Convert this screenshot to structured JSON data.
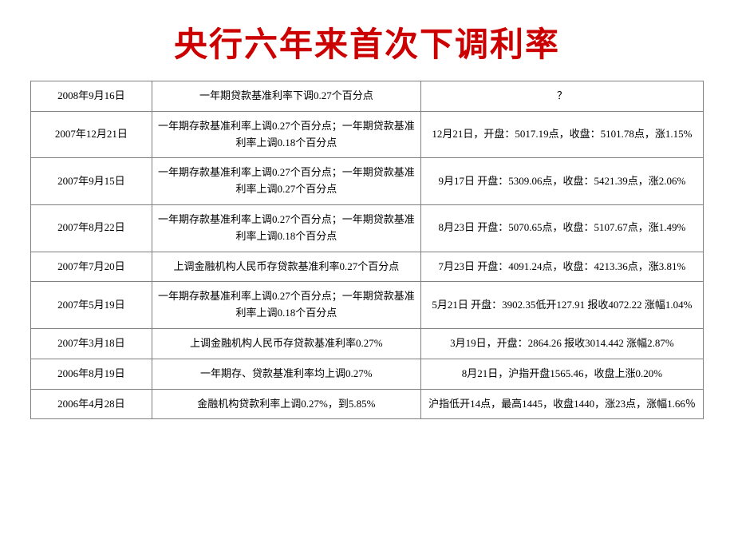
{
  "title": "央行六年来首次下调利率",
  "title_color": "#cc0000",
  "title_fontsize": 42,
  "background_color": "#ffffff",
  "border_color": "#808080",
  "cell_fontsize": 13,
  "cell_color": "#000000",
  "table": {
    "type": "table",
    "columns": [
      "date",
      "policy",
      "market"
    ],
    "col_widths_pct": [
      18,
      40,
      42
    ],
    "rows": [
      {
        "date": "2008年9月16日",
        "policy": "一年期贷款基准利率下调0.27个百分点",
        "market": "？"
      },
      {
        "date": "2007年12月21日",
        "policy": "一年期存款基准利率上调0.27个百分点；一年期贷款基准利率上调0.18个百分点",
        "market": "12月21日，开盘：5017.19点，收盘：5101.78点，涨1.15%"
      },
      {
        "date": "2007年9月15日",
        "policy": "一年期存款基准利率上调0.27个百分点；一年期贷款基准利率上调0.27个百分点",
        "market": "9月17日 开盘：5309.06点，收盘：5421.39点，涨2.06%"
      },
      {
        "date": "2007年8月22日",
        "policy": "一年期存款基准利率上调0.27个百分点；一年期贷款基准利率上调0.18个百分点",
        "market": "8月23日 开盘：5070.65点，收盘：5107.67点，涨1.49%"
      },
      {
        "date": "2007年7月20日",
        "policy": "上调金融机构人民币存贷款基准利率0.27个百分点",
        "market": "7月23日 开盘：4091.24点，收盘：4213.36点，涨3.81%"
      },
      {
        "date": "2007年5月19日",
        "policy": "一年期存款基准利率上调0.27个百分点；一年期贷款基准利率上调0.18个百分点",
        "market": "5月21日 开盘：3902.35低开127.91 报收4072.22 涨幅1.04%"
      },
      {
        "date": "2007年3月18日",
        "policy": "上调金融机构人民币存贷款基准利率0.27%",
        "market": "3月19日，开盘：2864.26 报收3014.442 涨幅2.87%"
      },
      {
        "date": "2006年8月19日",
        "policy": "一年期存、贷款基准利率均上调0.27%",
        "market": "8月21日，沪指开盘1565.46，收盘上涨0.20%"
      },
      {
        "date": "2006年4月28日",
        "policy": "金融机构贷款利率上调0.27%，到5.85%",
        "market": "沪指低开14点，最高1445，收盘1440，涨23点，涨幅1.66％"
      }
    ]
  }
}
